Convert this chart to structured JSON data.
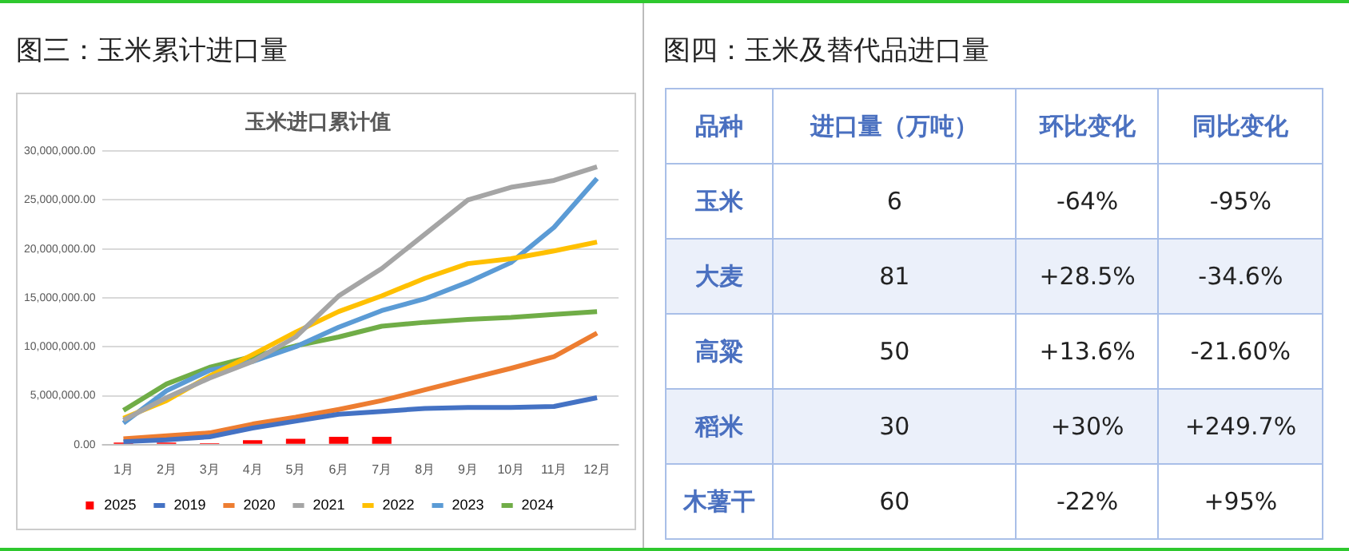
{
  "chart_data": [
    {
      "type": "line",
      "title": "图三：玉米累计进口量",
      "subtitle": "玉米进口累计值",
      "categories": [
        "1月",
        "2月",
        "3月",
        "4月",
        "5月",
        "6月",
        "7月",
        "8月",
        "9月",
        "10月",
        "11月",
        "12月"
      ],
      "series": [
        {
          "name": "2025",
          "type": "bar",
          "color": "#ff0000",
          "values": [
            200000,
            200000,
            150000,
            450000,
            600000,
            800000,
            800000,
            null,
            null,
            null,
            null,
            null
          ]
        },
        {
          "name": "2019",
          "color": "#4472c4",
          "values": [
            300000,
            500000,
            800000,
            1700000,
            2400000,
            3100000,
            3400000,
            3700000,
            3800000,
            3800000,
            3900000,
            4800000
          ]
        },
        {
          "name": "2020",
          "color": "#ed7d31",
          "values": [
            600000,
            900000,
            1200000,
            2100000,
            2800000,
            3600000,
            4500000,
            5600000,
            6700000,
            7800000,
            9000000,
            11400000
          ]
        },
        {
          "name": "2021",
          "color": "#a5a5a5",
          "values": [
            2500000,
            4800000,
            6800000,
            8500000,
            11000000,
            15200000,
            18000000,
            21500000,
            25000000,
            26300000,
            27000000,
            28400000
          ]
        },
        {
          "name": "2022",
          "color": "#ffc000",
          "values": [
            2700000,
            4500000,
            7000000,
            9200000,
            11500000,
            13600000,
            15200000,
            17000000,
            18500000,
            19000000,
            19800000,
            20700000
          ]
        },
        {
          "name": "2023",
          "color": "#5b9bd5",
          "values": [
            2200000,
            5500000,
            7600000,
            8500000,
            10000000,
            12000000,
            13700000,
            14900000,
            16600000,
            18600000,
            22200000,
            27200000
          ]
        },
        {
          "name": "2024",
          "color": "#70ad47",
          "values": [
            3500000,
            6200000,
            7900000,
            9000000,
            10100000,
            11000000,
            12100000,
            12500000,
            12800000,
            13000000,
            13300000,
            13600000
          ]
        }
      ],
      "ylim": [
        0,
        30000000
      ],
      "yticks": [
        {
          "value": 0,
          "label": "0.00"
        },
        {
          "value": 5000000,
          "label": "5,000,000.00"
        },
        {
          "value": 10000000,
          "label": "10,000,000.00"
        },
        {
          "value": 15000000,
          "label": "15,000,000.00"
        },
        {
          "value": 20000000,
          "label": "20,000,000.00"
        },
        {
          "value": 25000000,
          "label": "25,000,000.00"
        },
        {
          "value": 30000000,
          "label": "30,000,000.00"
        }
      ],
      "grid": "y",
      "legend": "bottom",
      "marker": "none",
      "line_style": "solid"
    },
    {
      "type": "other",
      "title": "图四：玉米及替代品进口量",
      "annotations": [
        "品种",
        "进口量（万吨）",
        "环比变化",
        "同比变化",
        "玉米",
        "6",
        "-64%",
        "-95%",
        "大麦",
        "81",
        "+28.5%",
        "-34.6%",
        "高粱",
        "50",
        "+13.6%",
        "-21.60%",
        "稻米",
        "30",
        "+30%",
        "+249.7%",
        "木薯干",
        "60",
        "-22%",
        "+95%"
      ]
    }
  ]
}
